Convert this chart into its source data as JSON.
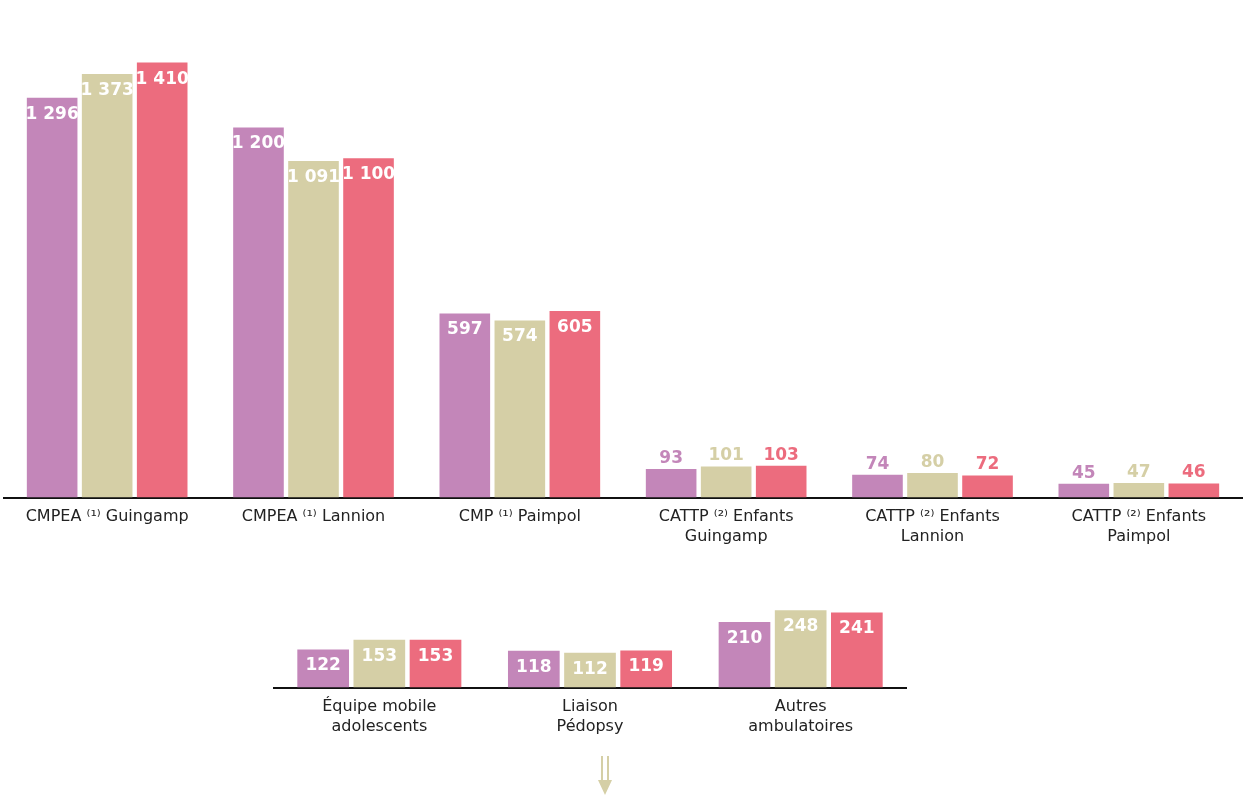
{
  "chart_data": [
    {
      "type": "bar",
      "categories": [
        "CMPEA ⁽¹⁾ Guingamp",
        "CMPEA ⁽¹⁾ Lannion",
        "CMP ⁽¹⁾ Paimpol",
        "CATTP ⁽²⁾ Enfants\nGuingamp",
        "CATTP ⁽²⁾ Enfants\nLannion",
        "CATTP ⁽²⁾ Enfants\nPaimpol"
      ],
      "series": [
        {
          "color": "#c386b9",
          "values": [
            1296,
            1200,
            597,
            93,
            74,
            45
          ],
          "value_labels": [
            "1 296",
            "1 200",
            "597",
            "93",
            "74",
            "45"
          ]
        },
        {
          "color": "#d5cfa6",
          "values": [
            1373,
            1091,
            574,
            101,
            80,
            47
          ],
          "value_labels": [
            "1 373",
            "1 091",
            "574",
            "101",
            "80",
            "47"
          ]
        },
        {
          "color": "#ec6c7e",
          "values": [
            1410,
            1100,
            605,
            103,
            72,
            46
          ],
          "value_labels": [
            "1 410",
            "1 100",
            "605",
            "103",
            "72",
            "46"
          ]
        }
      ],
      "legend": false,
      "grid": false,
      "tick_labels": "x"
    },
    {
      "type": "bar",
      "categories": [
        "Équipe mobile\nadolescents",
        "Liaison\nPédopsy",
        "Autres\nambulatoires"
      ],
      "series": [
        {
          "color": "#c386b9",
          "values": [
            122,
            118,
            210
          ],
          "value_labels": [
            "122",
            "118",
            "210"
          ]
        },
        {
          "color": "#d5cfa6",
          "values": [
            153,
            112,
            248
          ],
          "value_labels": [
            "153",
            "112",
            "248"
          ]
        },
        {
          "color": "#ec6c7e",
          "values": [
            153,
            119,
            241
          ],
          "value_labels": [
            "153",
            "119",
            "241"
          ]
        }
      ],
      "legend": false,
      "grid": false,
      "tick_labels": "x"
    }
  ]
}
